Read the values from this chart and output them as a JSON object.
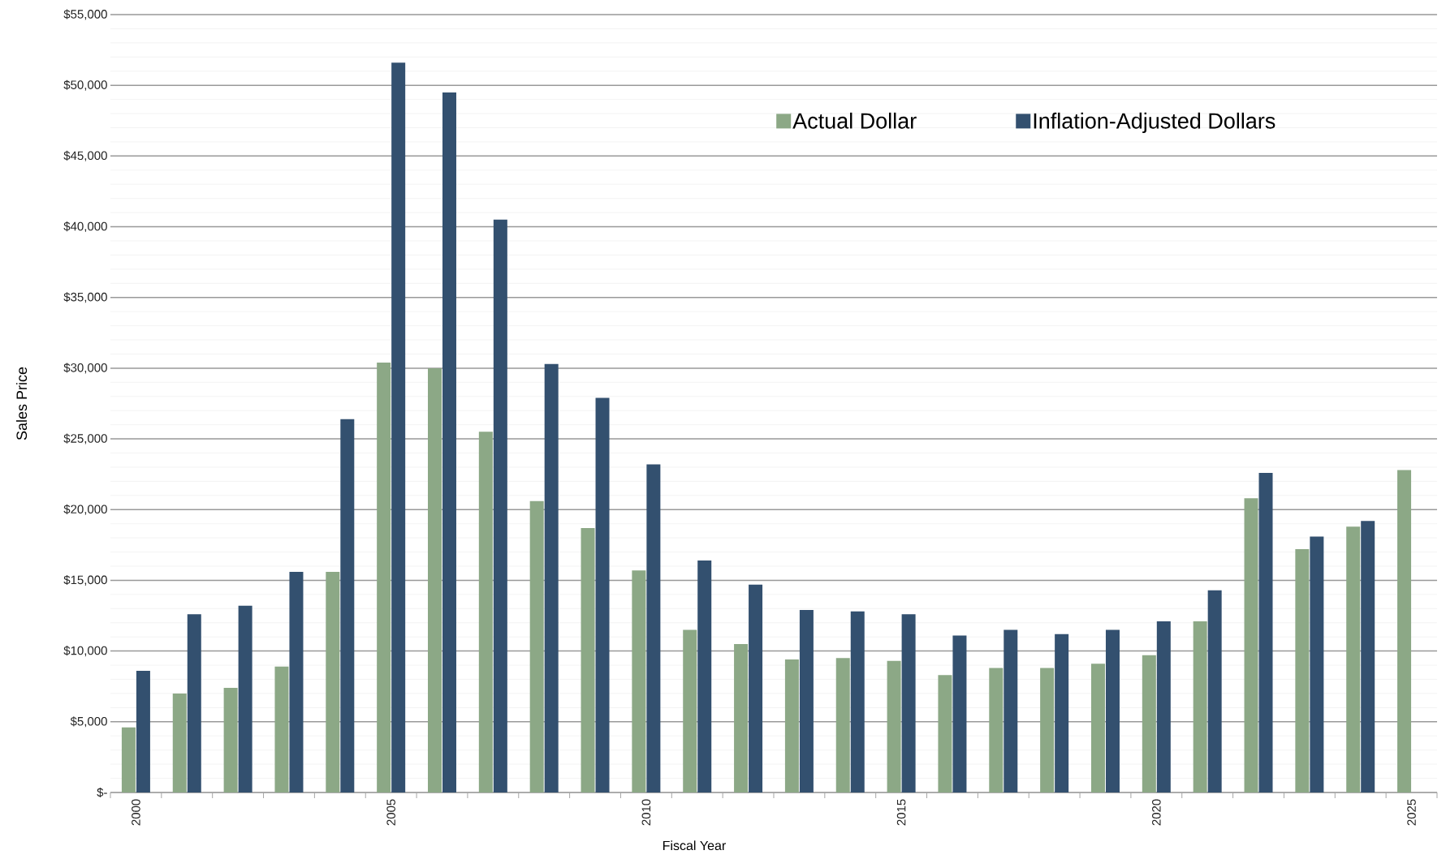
{
  "chart_data": {
    "type": "bar",
    "xlabel": "Fiscal Year",
    "ylabel": "Sales Price",
    "categories": [
      "2000",
      null,
      null,
      null,
      null,
      "2005",
      null,
      null,
      null,
      null,
      "2010",
      null,
      null,
      null,
      null,
      "2015",
      null,
      null,
      null,
      null,
      "2020",
      null,
      null,
      null,
      null,
      "2025"
    ],
    "series": [
      {
        "name": "Actual Dollar",
        "color": "#8ca886",
        "values": [
          4600,
          7000,
          7400,
          8900,
          15600,
          30400,
          30000,
          25500,
          20600,
          18700,
          15700,
          11500,
          10500,
          9400,
          9500,
          9300,
          8300,
          8800,
          8800,
          9100,
          9700,
          12100,
          20800,
          17200,
          18800,
          22800
        ]
      },
      {
        "name": "Inflation-Adjusted Dollars",
        "color": "#33506f",
        "values": [
          8600,
          12600,
          13200,
          15600,
          26400,
          51600,
          49500,
          40500,
          30300,
          27900,
          23200,
          16400,
          14700,
          12900,
          12800,
          12600,
          11100,
          11500,
          11200,
          11500,
          12100,
          14300,
          22600,
          18100,
          19200,
          null
        ]
      }
    ],
    "ylim": [
      0,
      55000
    ],
    "yticks": [
      {
        "value": 0,
        "label": "$-"
      },
      {
        "value": 5000,
        "label": "$5,000"
      },
      {
        "value": 10000,
        "label": "$10,000"
      },
      {
        "value": 15000,
        "label": "$15,000"
      },
      {
        "value": 20000,
        "label": "$20,000"
      },
      {
        "value": 25000,
        "label": "$25,000"
      },
      {
        "value": 30000,
        "label": "$30,000"
      },
      {
        "value": 35000,
        "label": "$35,000"
      },
      {
        "value": 40000,
        "label": "$40,000"
      },
      {
        "value": 45000,
        "label": "$45,000"
      },
      {
        "value": 50000,
        "label": "$50,000"
      },
      {
        "value": 55000,
        "label": "$55,000"
      }
    ],
    "grid": "y",
    "legend": "top right"
  }
}
